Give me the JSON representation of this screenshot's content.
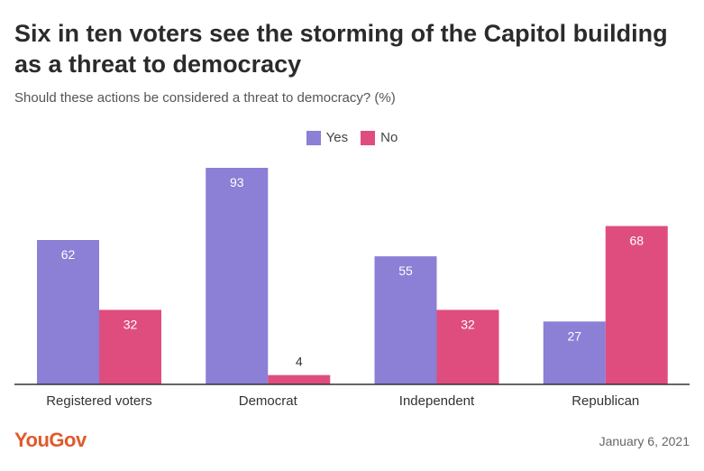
{
  "title": "Six in ten voters see the storming of the Capitol building as a threat to democracy",
  "subtitle": "Should these actions be considered a threat to democracy? (%)",
  "footer": {
    "brand": "YouGov",
    "date": "January 6, 2021"
  },
  "colors": {
    "yes": "#8b7fd6",
    "no": "#df4d7f",
    "axis": "#333333",
    "label_light": "#ffffff",
    "label_dark": "#333333"
  },
  "chart_data": {
    "type": "bar",
    "categories": [
      "Registered voters",
      "Democrat",
      "Independent",
      "Republican"
    ],
    "series": [
      {
        "name": "Yes",
        "values": [
          62,
          93,
          55,
          27
        ]
      },
      {
        "name": "No",
        "values": [
          32,
          4,
          32,
          68
        ]
      }
    ],
    "ylim": [
      0,
      93
    ],
    "legend": "top-center",
    "grid": false,
    "xlabel": "",
    "ylabel": ""
  }
}
